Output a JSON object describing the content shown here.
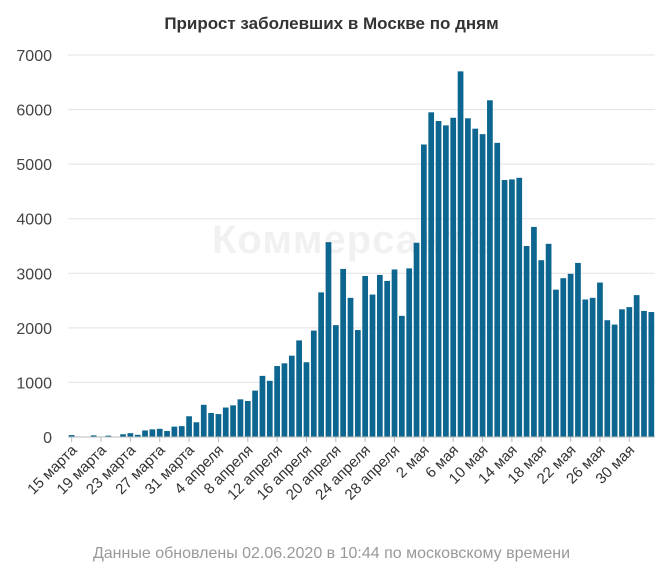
{
  "chart_data": {
    "type": "bar",
    "title": "Прирост заболевших в Москве по дням",
    "footnote": "Данные обновлены 02.06.2020 в 10:44 по московскому времени",
    "watermark": "Коммерсантъ",
    "bar_color": "#0d6690",
    "ylim": [
      0,
      7000
    ],
    "yticks": [
      "0",
      "1000",
      "2000",
      "3000",
      "4000",
      "5000",
      "6000",
      "7000"
    ],
    "grid": true,
    "x_tick_labels": [
      "15 марта",
      "19 марта",
      "23 марта",
      "27 марта",
      "31 марта",
      "4 апреля",
      "8 апреля",
      "12 апреля",
      "16 апреля",
      "20 апреля",
      "24 апреля",
      "28 апреля",
      "2 мая",
      "6 мая",
      "10 мая",
      "14 мая",
      "18 мая",
      "22 мая",
      "26 мая",
      "30 мая"
    ],
    "x_tick_every": 4,
    "values": [
      35,
      10,
      5,
      30,
      10,
      25,
      5,
      50,
      70,
      40,
      120,
      140,
      150,
      110,
      190,
      200,
      380,
      270,
      590,
      440,
      420,
      540,
      580,
      690,
      660,
      850,
      1120,
      1030,
      1300,
      1350,
      1490,
      1770,
      1370,
      1950,
      2650,
      3570,
      2050,
      3080,
      2550,
      1960,
      2950,
      2610,
      2970,
      2860,
      3070,
      2220,
      3090,
      3560,
      5360,
      5950,
      5790,
      5710,
      5850,
      6700,
      5840,
      5650,
      5550,
      6170,
      5390,
      4710,
      4720,
      4750,
      3500,
      3850,
      3240,
      3540,
      2700,
      2910,
      2990,
      3190,
      2520,
      2550,
      2830,
      2140,
      2060,
      2340,
      2380,
      2600,
      2310,
      2290
    ]
  }
}
